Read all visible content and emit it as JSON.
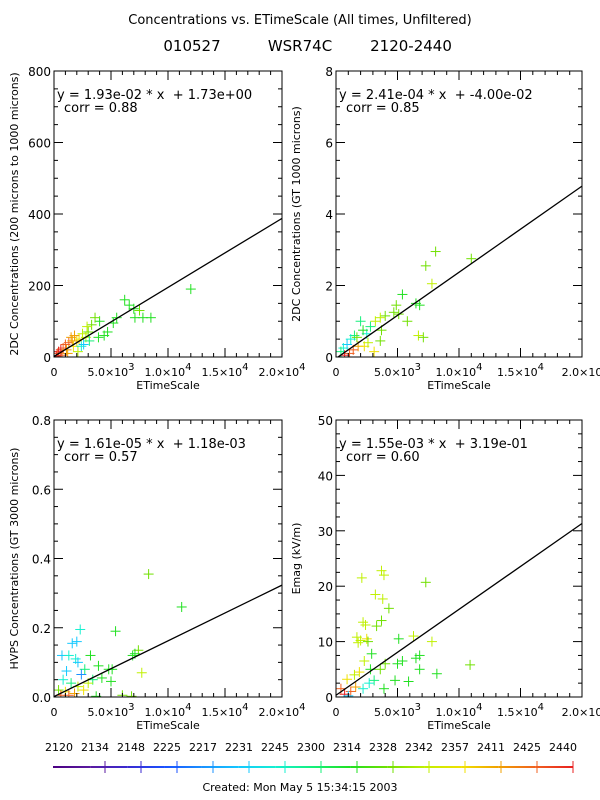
{
  "header": {
    "title": "Concentrations vs. ETimeScale (All times, Unfiltered)",
    "subtitle_date": "010527",
    "subtitle_radar": "WSR74C",
    "subtitle_range": "2120-2440"
  },
  "footer": {
    "created": "Created: Mon May  5 15:34:15 2003"
  },
  "colorbar": {
    "labels": [
      "2120",
      "2134",
      "2148",
      "2225",
      "2217",
      "2231",
      "2245",
      "2300",
      "2314",
      "2328",
      "2342",
      "2357",
      "2411",
      "2425",
      "2440"
    ],
    "colors": [
      "#4b0082",
      "#5a1aa0",
      "#3a2ad0",
      "#1a50ff",
      "#1a90ff",
      "#14c8ff",
      "#14f0d0",
      "#14f07a",
      "#20e020",
      "#70e000",
      "#c0f000",
      "#f0e000",
      "#f0a000",
      "#f06020",
      "#e82020"
    ]
  },
  "chart_data": [
    {
      "type": "scatter",
      "id": "p1",
      "title": "",
      "xlabel": "ETimeScale",
      "ylabel": "2DC Concentrations (200 microns to 1000 microns)",
      "xlim": [
        0,
        20000
      ],
      "ylim": [
        0,
        800
      ],
      "xticks": [
        {
          "v": 0,
          "l": "0"
        },
        {
          "v": 5000,
          "l": "5.0×10",
          "e": "3"
        },
        {
          "v": 10000,
          "l": "1.0×10",
          "e": "4"
        },
        {
          "v": 15000,
          "l": "1.5×10",
          "e": "4"
        },
        {
          "v": 20000,
          "l": "2.0×10",
          "e": "4"
        }
      ],
      "yticks": [
        {
          "v": 0,
          "l": "0"
        },
        {
          "v": 200,
          "l": "200"
        },
        {
          "v": 400,
          "l": "400"
        },
        {
          "v": 600,
          "l": "600"
        },
        {
          "v": 800,
          "l": "800"
        }
      ],
      "fit": {
        "slope": 0.0193,
        "intercept": 1.73,
        "equation": "y = 1.93e-02 * x  + 1.73e+00",
        "corr": "corr = 0.88"
      },
      "points": [
        [
          12000,
          190,
          8
        ],
        [
          6200,
          160,
          8
        ],
        [
          6600,
          145,
          8
        ],
        [
          7500,
          130,
          9
        ],
        [
          7000,
          135,
          8
        ],
        [
          7800,
          110,
          8
        ],
        [
          8500,
          110,
          8
        ],
        [
          7100,
          110,
          8
        ],
        [
          5500,
          110,
          8
        ],
        [
          5200,
          95,
          8
        ],
        [
          4700,
          70,
          8
        ],
        [
          4000,
          100,
          8
        ],
        [
          3600,
          110,
          9
        ],
        [
          3300,
          90,
          9
        ],
        [
          3000,
          70,
          9
        ],
        [
          2800,
          55,
          10
        ],
        [
          2500,
          65,
          10
        ],
        [
          2200,
          50,
          11
        ],
        [
          2000,
          45,
          11
        ],
        [
          1800,
          60,
          12
        ],
        [
          1500,
          55,
          12
        ],
        [
          1300,
          40,
          13
        ],
        [
          1000,
          35,
          13
        ],
        [
          800,
          25,
          13
        ],
        [
          600,
          20,
          14
        ],
        [
          400,
          15,
          14
        ],
        [
          300,
          10,
          13
        ],
        [
          1100,
          20,
          12
        ],
        [
          1700,
          30,
          11
        ],
        [
          2400,
          30,
          6
        ],
        [
          2600,
          35,
          5
        ],
        [
          3100,
          45,
          7
        ],
        [
          3900,
          55,
          8
        ],
        [
          4400,
          60,
          8
        ],
        [
          1200,
          10,
          12
        ],
        [
          700,
          5,
          13
        ],
        [
          200,
          3,
          14
        ],
        [
          2100,
          15,
          10
        ],
        [
          1600,
          45,
          12
        ],
        [
          2900,
          85,
          10
        ]
      ]
    },
    {
      "type": "scatter",
      "id": "p2",
      "xlabel": "ETimeScale",
      "ylabel": "2DC Concentrations (GT 1000 microns)",
      "xlim": [
        0,
        20000
      ],
      "ylim": [
        0,
        8
      ],
      "xticks": [
        {
          "v": 0,
          "l": "0"
        },
        {
          "v": 5000,
          "l": "5.0×10",
          "e": "3"
        },
        {
          "v": 10000,
          "l": "1.0×10",
          "e": "4"
        },
        {
          "v": 15000,
          "l": "1.5×10",
          "e": "4"
        },
        {
          "v": 20000,
          "l": "2.0×10"
        }
      ],
      "yticks": [
        {
          "v": 0,
          "l": "0"
        },
        {
          "v": 2,
          "l": "2"
        },
        {
          "v": 4,
          "l": "4"
        },
        {
          "v": 6,
          "l": "6"
        },
        {
          "v": 8,
          "l": "8"
        }
      ],
      "fit": {
        "slope": 0.000241,
        "intercept": -0.04,
        "equation": "y = 2.41e-04 * x  + -4.00e-02",
        "corr": "corr = 0.85"
      },
      "points": [
        [
          8100,
          2.95,
          9
        ],
        [
          11000,
          2.75,
          9
        ],
        [
          7300,
          2.55,
          9
        ],
        [
          7800,
          2.05,
          10
        ],
        [
          5400,
          1.75,
          8
        ],
        [
          6500,
          1.5,
          8
        ],
        [
          6800,
          1.45,
          8
        ],
        [
          4900,
          1.45,
          9
        ],
        [
          4700,
          1.25,
          9
        ],
        [
          5100,
          1.2,
          9
        ],
        [
          5800,
          1.0,
          9
        ],
        [
          4000,
          1.15,
          9
        ],
        [
          3600,
          1.1,
          10
        ],
        [
          3200,
          1.0,
          10
        ],
        [
          2800,
          0.85,
          7
        ],
        [
          2000,
          1.0,
          7
        ],
        [
          2500,
          0.65,
          6
        ],
        [
          3700,
          0.75,
          9
        ],
        [
          3600,
          0.45,
          9
        ],
        [
          6700,
          0.6,
          10
        ],
        [
          7100,
          0.55,
          9
        ],
        [
          1500,
          0.6,
          7
        ],
        [
          1200,
          0.5,
          6
        ],
        [
          900,
          0.35,
          5
        ],
        [
          600,
          0.25,
          6
        ],
        [
          400,
          0.15,
          7
        ],
        [
          1800,
          0.3,
          12
        ],
        [
          1400,
          0.2,
          13
        ],
        [
          1100,
          0.1,
          13
        ],
        [
          700,
          0.05,
          14
        ],
        [
          2300,
          0.3,
          11
        ],
        [
          3100,
          0.15,
          11
        ],
        [
          2600,
          0.4,
          10
        ],
        [
          2200,
          0.75,
          8
        ],
        [
          1700,
          0.55,
          9
        ]
      ]
    },
    {
      "type": "scatter",
      "id": "p3",
      "xlabel": "ETimeScale",
      "ylabel": "HVPS Concentrations (GT 3000 microns)",
      "xlim": [
        0,
        20000
      ],
      "ylim": [
        0,
        0.8
      ],
      "xticks": [
        {
          "v": 0,
          "l": "0"
        },
        {
          "v": 5000,
          "l": "5.0×10",
          "e": "3"
        },
        {
          "v": 10000,
          "l": "1.0×10",
          "e": "4"
        },
        {
          "v": 15000,
          "l": "1.5×10",
          "e": "4"
        },
        {
          "v": 20000,
          "l": "2.0×10",
          "e": "4"
        }
      ],
      "yticks": [
        {
          "v": 0,
          "l": "0.0"
        },
        {
          "v": 0.2,
          "l": "0.2"
        },
        {
          "v": 0.4,
          "l": "0.4"
        },
        {
          "v": 0.6,
          "l": "0.6"
        },
        {
          "v": 0.8,
          "l": "0.8"
        }
      ],
      "fit": {
        "slope": 1.61e-05,
        "intercept": 0.00118,
        "equation": "y = 1.61e-05 * x  + 1.18e-03",
        "corr": "corr = 0.57"
      },
      "points": [
        [
          8300,
          0.355,
          9
        ],
        [
          11200,
          0.26,
          8
        ],
        [
          5400,
          0.19,
          8
        ],
        [
          2300,
          0.195,
          6
        ],
        [
          2000,
          0.16,
          5
        ],
        [
          1600,
          0.155,
          5
        ],
        [
          7400,
          0.135,
          9
        ],
        [
          6900,
          0.12,
          8
        ],
        [
          7100,
          0.125,
          8
        ],
        [
          3200,
          0.12,
          8
        ],
        [
          700,
          0.12,
          5
        ],
        [
          1300,
          0.12,
          6
        ],
        [
          1900,
          0.11,
          6
        ],
        [
          2100,
          0.1,
          5
        ],
        [
          3900,
          0.09,
          8
        ],
        [
          2700,
          0.08,
          7
        ],
        [
          4800,
          0.08,
          8
        ],
        [
          5100,
          0.08,
          8
        ],
        [
          1100,
          0.075,
          5
        ],
        [
          2400,
          0.065,
          4
        ],
        [
          7700,
          0.07,
          10
        ],
        [
          5000,
          0.045,
          8
        ],
        [
          4200,
          0.055,
          8
        ],
        [
          3400,
          0.05,
          7
        ],
        [
          3000,
          0.04,
          10
        ],
        [
          800,
          0.05,
          6
        ],
        [
          1500,
          0.04,
          7
        ],
        [
          400,
          0.02,
          9
        ],
        [
          1000,
          0.015,
          11
        ],
        [
          1800,
          0.01,
          12
        ],
        [
          600,
          0.005,
          13
        ],
        [
          1300,
          0.005,
          13
        ],
        [
          6000,
          0.005,
          9
        ],
        [
          6800,
          0.002,
          9
        ],
        [
          3700,
          0.002,
          8
        ],
        [
          2600,
          0.02,
          11
        ],
        [
          2100,
          0.03,
          10
        ]
      ]
    },
    {
      "type": "scatter",
      "id": "p4",
      "xlabel": "ETimeScale",
      "ylabel": "Emag (kV/m)",
      "xlim": [
        0,
        20000
      ],
      "ylim": [
        0,
        50
      ],
      "xticks": [
        {
          "v": 0,
          "l": "0"
        },
        {
          "v": 5000,
          "l": "5.0×10",
          "e": "3"
        },
        {
          "v": 10000,
          "l": "1.0×10",
          "e": "4"
        },
        {
          "v": 15000,
          "l": "1.5×10",
          "e": "4"
        },
        {
          "v": 20000,
          "l": "2.0×10"
        }
      ],
      "yticks": [
        {
          "v": 0,
          "l": "0"
        },
        {
          "v": 10,
          "l": "10"
        },
        {
          "v": 20,
          "l": "20"
        },
        {
          "v": 30,
          "l": "30"
        },
        {
          "v": 40,
          "l": "40"
        },
        {
          "v": 50,
          "l": "50"
        }
      ],
      "fit": {
        "slope": 0.00155,
        "intercept": 0.319,
        "equation": "y = 1.55e-03 * x  + 3.19e-01",
        "corr": "corr = 0.60"
      },
      "points": [
        [
          3700,
          22.8,
          10
        ],
        [
          3900,
          22.0,
          10
        ],
        [
          2100,
          21.5,
          10
        ],
        [
          7300,
          20.7,
          9
        ],
        [
          3200,
          18.5,
          10
        ],
        [
          3800,
          17.7,
          10
        ],
        [
          4300,
          16.0,
          9
        ],
        [
          2200,
          13.5,
          10
        ],
        [
          2400,
          13.0,
          10
        ],
        [
          3300,
          12.8,
          9
        ],
        [
          3700,
          13.8,
          9
        ],
        [
          1700,
          10.8,
          10
        ],
        [
          2500,
          10.5,
          11
        ],
        [
          2000,
          10.2,
          10
        ],
        [
          1800,
          9.8,
          10
        ],
        [
          2600,
          10.0,
          9
        ],
        [
          5100,
          10.5,
          8
        ],
        [
          6300,
          11.0,
          10
        ],
        [
          7800,
          10.0,
          10
        ],
        [
          10900,
          5.8,
          9
        ],
        [
          6800,
          7.5,
          8
        ],
        [
          6500,
          7.0,
          8
        ],
        [
          5400,
          6.5,
          8
        ],
        [
          5000,
          6.0,
          8
        ],
        [
          4000,
          6.0,
          9
        ],
        [
          3600,
          5.0,
          9
        ],
        [
          2800,
          5.0,
          8
        ],
        [
          2900,
          7.8,
          8
        ],
        [
          2300,
          6.5,
          10
        ],
        [
          1900,
          4.5,
          11
        ],
        [
          1500,
          4.0,
          10
        ],
        [
          900,
          3.2,
          11
        ],
        [
          4800,
          3.0,
          8
        ],
        [
          5900,
          2.8,
          8
        ],
        [
          6800,
          5.0,
          8
        ],
        [
          8200,
          4.2,
          8
        ],
        [
          3900,
          1.5,
          8
        ],
        [
          3100,
          3.0,
          7
        ],
        [
          2700,
          2.5,
          6
        ],
        [
          2200,
          1.5,
          6
        ],
        [
          1600,
          1.8,
          12
        ],
        [
          1200,
          1.0,
          13
        ],
        [
          700,
          0.5,
          14
        ],
        [
          400,
          1.5,
          13
        ],
        [
          1000,
          0.2,
          5
        ]
      ]
    }
  ]
}
